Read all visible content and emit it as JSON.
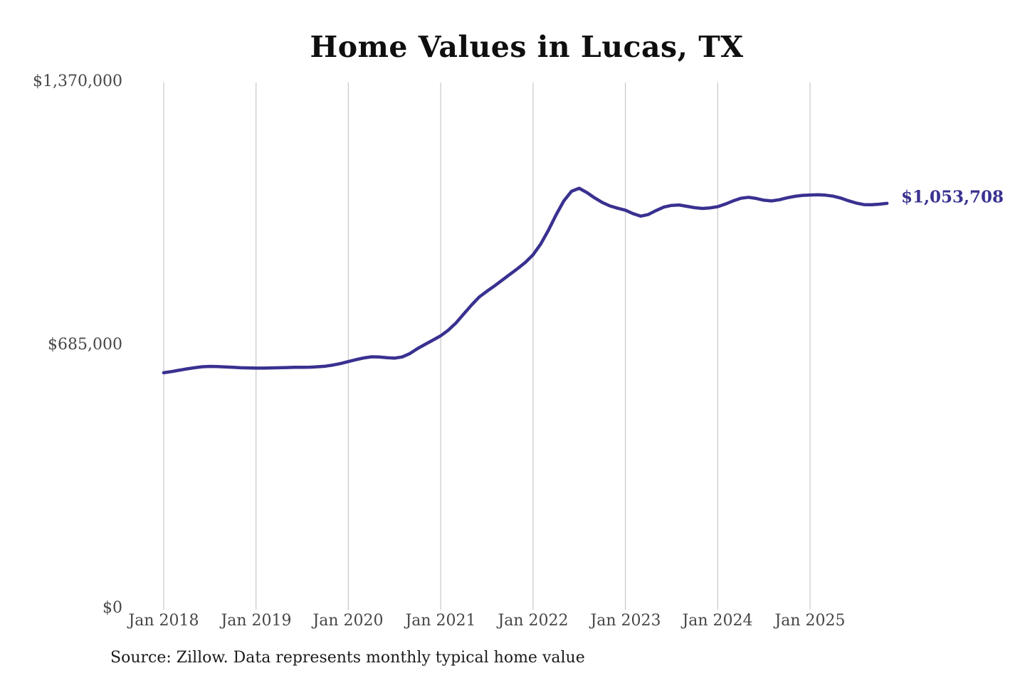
{
  "header": {
    "title": "Home Values in Lucas, TX"
  },
  "annotations": {
    "latest_value_label": "$1,053,708"
  },
  "footer": {
    "source_note": "Source: Zillow. Data represents monthly typical home value"
  },
  "colors": {
    "background": "#ffffff",
    "line": "#393190",
    "grid": "#cccccc",
    "axis_text": "#474747",
    "title_text": "#0f0f0f",
    "source_text": "#1c1c1c"
  },
  "chart_data": {
    "type": "line",
    "title": "Home Values in Lucas, TX",
    "series_name": "Monthly typical home value (Zillow)",
    "x_unit": "month",
    "ylim": [
      0,
      1370000
    ],
    "grid": "vertical",
    "legend": "none",
    "last_value": 1053708,
    "last_value_label": "$1,053,708",
    "yticks": [
      {
        "value": 0,
        "label": "$0"
      },
      {
        "value": 685000,
        "label": "$685,000"
      },
      {
        "value": 1370000,
        "label": "$1,370,000"
      }
    ],
    "xticks": [
      {
        "month": "2018-01",
        "label": "Jan 2018"
      },
      {
        "month": "2019-01",
        "label": "Jan 2019"
      },
      {
        "month": "2020-01",
        "label": "Jan 2020"
      },
      {
        "month": "2021-01",
        "label": "Jan 2021"
      },
      {
        "month": "2022-01",
        "label": "Jan 2022"
      },
      {
        "month": "2023-01",
        "label": "Jan 2023"
      },
      {
        "month": "2024-01",
        "label": "Jan 2024"
      },
      {
        "month": "2025-01",
        "label": "Jan 2025"
      }
    ],
    "months": [
      "2018-01",
      "2018-02",
      "2018-03",
      "2018-04",
      "2018-05",
      "2018-06",
      "2018-07",
      "2018-08",
      "2018-09",
      "2018-10",
      "2018-11",
      "2018-12",
      "2019-01",
      "2019-02",
      "2019-03",
      "2019-04",
      "2019-05",
      "2019-06",
      "2019-07",
      "2019-08",
      "2019-09",
      "2019-10",
      "2019-11",
      "2019-12",
      "2020-01",
      "2020-02",
      "2020-03",
      "2020-04",
      "2020-05",
      "2020-06",
      "2020-07",
      "2020-08",
      "2020-09",
      "2020-10",
      "2020-11",
      "2020-12",
      "2021-01",
      "2021-02",
      "2021-03",
      "2021-04",
      "2021-05",
      "2021-06",
      "2021-07",
      "2021-08",
      "2021-09",
      "2021-10",
      "2021-11",
      "2021-12",
      "2022-01",
      "2022-02",
      "2022-03",
      "2022-04",
      "2022-05",
      "2022-06",
      "2022-07",
      "2022-08",
      "2022-09",
      "2022-10",
      "2022-11",
      "2022-12",
      "2023-01",
      "2023-02",
      "2023-03",
      "2023-04",
      "2023-05",
      "2023-06",
      "2023-07",
      "2023-08",
      "2023-09",
      "2023-10",
      "2023-11",
      "2023-12",
      "2024-01",
      "2024-02",
      "2024-03",
      "2024-04",
      "2024-05",
      "2024-06",
      "2024-07",
      "2024-08",
      "2024-09",
      "2024-10",
      "2024-11",
      "2024-12",
      "2025-01",
      "2025-02",
      "2025-03",
      "2025-04",
      "2025-05",
      "2025-06",
      "2025-07",
      "2025-08",
      "2025-09",
      "2025-10",
      "2025-11"
    ],
    "values": [
      613000,
      616000,
      619500,
      623000,
      626000,
      628500,
      629500,
      629000,
      628000,
      627000,
      626000,
      625500,
      625000,
      625000,
      625500,
      626000,
      626500,
      627000,
      627000,
      627500,
      628500,
      630000,
      633000,
      637000,
      642000,
      647000,
      651500,
      654500,
      654000,
      652000,
      651000,
      654000,
      663000,
      676000,
      687000,
      698000,
      709000,
      724000,
      743000,
      766000,
      789000,
      810000,
      825000,
      839000,
      854000,
      869000,
      884000,
      900000,
      920000,
      948000,
      984000,
      1024000,
      1060000,
      1085000,
      1093000,
      1082000,
      1068000,
      1056000,
      1047000,
      1041000,
      1036000,
      1027000,
      1020500,
      1025000,
      1035000,
      1044000,
      1048500,
      1049500,
      1046000,
      1042500,
      1040500,
      1042000,
      1045000,
      1052000,
      1060000,
      1067000,
      1069500,
      1066500,
      1062000,
      1060000,
      1063000,
      1068000,
      1072000,
      1074500,
      1075500,
      1076000,
      1075000,
      1072500,
      1067500,
      1060500,
      1054500,
      1050500,
      1050000,
      1051500,
      1053708
    ]
  }
}
